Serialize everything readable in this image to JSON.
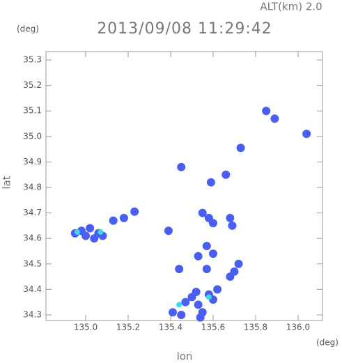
{
  "chart_data": {
    "type": "scatter",
    "title": "2013/09/08 11:29:42",
    "subtitle": "ALT(km) 2.0",
    "xlabel": "lon",
    "ylabel": "lat",
    "xunit": "(deg)",
    "yunit": "(deg)",
    "xlim": [
      134.813,
      136.115
    ],
    "ylim": [
      34.278,
      35.333
    ],
    "xticks": [
      {
        "value": 135,
        "label": "135.0"
      },
      135.2,
      135.4,
      135.6,
      135.8,
      {
        "value": 136,
        "label": "136.0"
      }
    ],
    "yticks": [
      34.3,
      34.4,
      34.5,
      34.6,
      34.7,
      34.8,
      34.9,
      {
        "value": 35,
        "label": "35.0"
      },
      35.1,
      35.2,
      35.3
    ],
    "series": [
      {
        "color": "#4a5ef2",
        "x": [
          134.95,
          134.98,
          135.0,
          135.02,
          135.06,
          135.08,
          135.04,
          135.13,
          135.18,
          135.23,
          135.39,
          135.45,
          135.59,
          135.66,
          135.73,
          135.85,
          135.89,
          136.04,
          135.55,
          135.58,
          135.6,
          135.68,
          135.69,
          135.57,
          135.53,
          135.6,
          135.57,
          135.44,
          135.72,
          135.7,
          135.68,
          135.41,
          135.47,
          135.5,
          135.53,
          135.55,
          135.58,
          135.62,
          135.6,
          135.52,
          135.45,
          135.54
        ],
        "y": [
          34.62,
          34.63,
          34.61,
          34.64,
          34.62,
          34.61,
          34.6,
          34.67,
          34.68,
          34.705,
          34.63,
          34.88,
          34.82,
          34.85,
          34.955,
          35.1,
          35.07,
          35.01,
          34.7,
          34.68,
          34.66,
          34.68,
          34.65,
          34.57,
          34.53,
          34.54,
          34.48,
          34.48,
          34.5,
          34.47,
          34.45,
          34.31,
          34.35,
          34.37,
          34.34,
          34.31,
          34.38,
          34.4,
          34.36,
          34.39,
          34.3,
          34.29
        ]
      },
      {
        "color": "#3fd8e8",
        "x": [
          134.96,
          135.07,
          135.44,
          135.58
        ],
        "y": [
          34.625,
          34.625,
          34.34,
          34.37
        ]
      }
    ]
  }
}
